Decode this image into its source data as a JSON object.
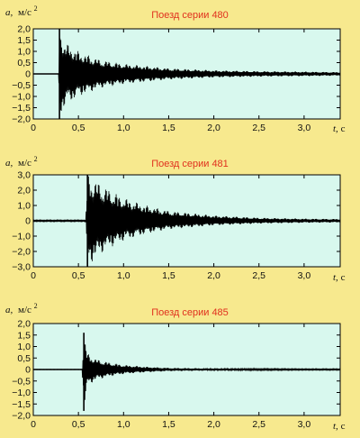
{
  "charts": [
    {
      "title": "Поезд серии 480",
      "ylabel_var": "a,",
      "ylabel_unit": "м/с",
      "ylabel_sup": "2",
      "xlabel_var": "t,",
      "xlabel_unit": " с"
    },
    {
      "title": "Поезд серии 481",
      "ylabel_var": "a,",
      "ylabel_unit": "м/с",
      "ylabel_sup": "2",
      "xlabel_var": "t,",
      "xlabel_unit": " с"
    },
    {
      "title": "Поезд серии 485",
      "ylabel_var": "a,",
      "ylabel_unit": "м/с",
      "ylabel_sup": "2",
      "xlabel_var": "t,",
      "xlabel_unit": " с"
    }
  ],
  "colors": {
    "page_background": "#f7e98e",
    "plot_background": "#d8f8ee",
    "signal": "#000000",
    "title": "#e0301e"
  },
  "chart_data": [
    {
      "type": "line",
      "title": "Поезд серии 480",
      "xlabel": "t, с",
      "ylabel": "a, м/с2",
      "xlim": [
        0,
        3.4
      ],
      "ylim": [
        -2.0,
        2.0
      ],
      "xticks": [
        "0",
        "0,5",
        "1,0",
        "1,5",
        "2,0",
        "2,5",
        "3,0"
      ],
      "xtick_values": [
        0,
        0.5,
        1.0,
        1.5,
        2.0,
        2.5,
        3.0
      ],
      "yticks": [
        "2,0",
        "1,5",
        "1,0",
        "0,5",
        "0",
        "−0,5",
        "−1,0",
        "−1,5",
        "−2,0"
      ],
      "ytick_values": [
        2.0,
        1.5,
        1.0,
        0.5,
        0,
        -0.5,
        -1.0,
        -1.5,
        -2.0
      ],
      "grid": false,
      "series": [
        {
          "x": [
            0,
            0.28,
            0.29,
            0.35,
            0.5,
            0.75,
            1.0,
            1.5,
            2.0,
            2.5,
            3.0,
            3.4
          ],
          "envelope_upper": [
            0,
            0,
            2.0,
            1.4,
            1.0,
            0.62,
            0.45,
            0.25,
            0.16,
            0.12,
            0.1,
            0.08
          ],
          "envelope_lower": [
            0,
            0,
            -2.0,
            -1.4,
            -1.0,
            -0.62,
            -0.45,
            -0.25,
            -0.16,
            -0.12,
            -0.1,
            -0.08
          ]
        }
      ]
    },
    {
      "type": "line",
      "title": "Поезд серии 481",
      "xlabel": "t, с",
      "ylabel": "a, м/с2",
      "xlim": [
        0,
        3.4
      ],
      "ylim": [
        -3.0,
        3.0
      ],
      "xticks": [
        "0",
        "0,5",
        "1,0",
        "1,5",
        "2,0",
        "2,5",
        "3,0"
      ],
      "xtick_values": [
        0,
        0.5,
        1.0,
        1.5,
        2.0,
        2.5,
        3.0
      ],
      "yticks": [
        "3,0",
        "2,0",
        "1,0",
        "0",
        "−1,0",
        "−2,0",
        "−3,0"
      ],
      "ytick_values": [
        3.0,
        2.0,
        1.0,
        0,
        -1.0,
        -2.0,
        -3.0
      ],
      "grid": false,
      "series": [
        {
          "x": [
            0,
            0.58,
            0.6,
            0.7,
            0.8,
            1.0,
            1.25,
            1.5,
            2.0,
            2.5,
            3.0,
            3.4
          ],
          "envelope_upper": [
            0.05,
            0.05,
            3.0,
            2.6,
            2.2,
            1.5,
            1.0,
            0.65,
            0.35,
            0.2,
            0.14,
            0.12
          ],
          "envelope_lower": [
            -0.05,
            -0.05,
            -3.0,
            -2.4,
            -1.9,
            -1.3,
            -0.85,
            -0.55,
            -0.3,
            -0.18,
            -0.13,
            -0.11
          ]
        }
      ]
    },
    {
      "type": "line",
      "title": "Поезд серии 485",
      "xlabel": "t, с",
      "ylabel": "a, м/с2",
      "xlim": [
        0,
        3.4
      ],
      "ylim": [
        -2.0,
        2.0
      ],
      "xticks": [
        "0",
        "0,5",
        "1,0",
        "1,5",
        "2,0",
        "2,5",
        "3,0"
      ],
      "xtick_values": [
        0,
        0.5,
        1.0,
        1.5,
        2.0,
        2.5,
        3.0
      ],
      "yticks": [
        "2,0",
        "1,5",
        "1,0",
        "0,5",
        "0",
        "−0,5",
        "−1,0",
        "−1,5",
        "−2,0"
      ],
      "ytick_values": [
        2.0,
        1.5,
        1.0,
        0.5,
        0,
        -0.5,
        -1.0,
        -1.5,
        -2.0
      ],
      "grid": false,
      "series": [
        {
          "x": [
            0,
            0.54,
            0.56,
            0.6,
            0.7,
            0.85,
            1.0,
            1.25,
            1.5,
            2.0,
            2.5,
            3.0,
            3.4
          ],
          "envelope_upper": [
            0.01,
            0.01,
            1.6,
            0.7,
            0.45,
            0.3,
            0.2,
            0.12,
            0.07,
            0.05,
            0.04,
            0.03,
            0.03
          ],
          "envelope_lower": [
            -0.01,
            -0.01,
            -1.8,
            -0.7,
            -0.45,
            -0.3,
            -0.2,
            -0.12,
            -0.07,
            -0.05,
            -0.04,
            -0.03,
            -0.03
          ]
        }
      ]
    }
  ]
}
